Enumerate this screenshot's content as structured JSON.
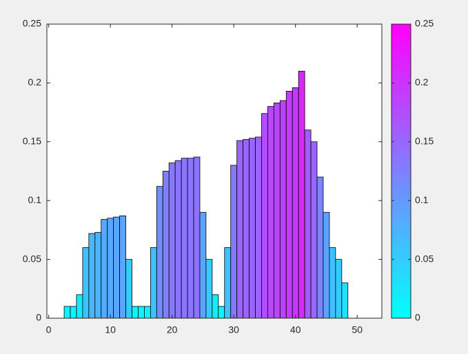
{
  "chart_data": {
    "type": "bar",
    "colormap": "cool",
    "x": [
      3,
      4,
      5,
      6,
      7,
      8,
      9,
      10,
      11,
      12,
      13,
      14,
      15,
      16,
      17,
      18,
      19,
      20,
      21,
      22,
      23,
      24,
      25,
      26,
      27,
      28,
      29,
      30,
      31,
      32,
      33,
      34,
      35,
      36,
      37,
      38,
      39,
      40,
      41,
      42,
      43,
      44,
      45,
      46,
      47,
      48
    ],
    "values": [
      0.01,
      0.01,
      0.02,
      0.06,
      0.072,
      0.073,
      0.084,
      0.085,
      0.086,
      0.087,
      0.05,
      0.01,
      0.01,
      0.01,
      0.06,
      0.112,
      0.125,
      0.132,
      0.134,
      0.136,
      0.136,
      0.137,
      0.09,
      0.05,
      0.02,
      0.01,
      0.06,
      0.13,
      0.151,
      0.152,
      0.153,
      0.154,
      0.174,
      0.18,
      0.183,
      0.185,
      0.193,
      0.196,
      0.21,
      0.16,
      0.15,
      0.12,
      0.09,
      0.06,
      0.05,
      0.03
    ],
    "xlim": [
      -0.3,
      54
    ],
    "xticks": [
      0,
      10,
      20,
      30,
      40,
      50
    ],
    "ylim": [
      0,
      0.25
    ],
    "yticks": [
      0,
      0.05,
      0.1,
      0.15,
      0.2,
      0.25
    ],
    "clim": [
      0,
      0.25
    ],
    "cticks": [
      0,
      0.05,
      0.1,
      0.15,
      0.2,
      0.25
    ]
  }
}
